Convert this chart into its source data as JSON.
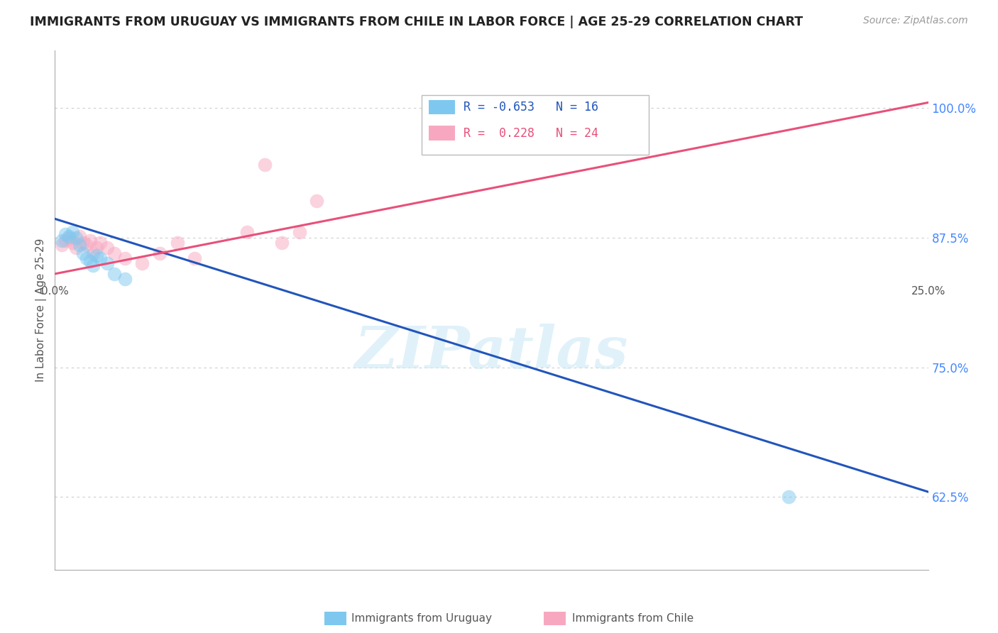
{
  "title": "IMMIGRANTS FROM URUGUAY VS IMMIGRANTS FROM CHILE IN LABOR FORCE | AGE 25-29 CORRELATION CHART",
  "source": "Source: ZipAtlas.com",
  "ylabel": "In Labor Force | Age 25-29",
  "ytick_labels": [
    "62.5%",
    "75.0%",
    "87.5%",
    "100.0%"
  ],
  "ytick_values": [
    0.625,
    0.75,
    0.875,
    1.0
  ],
  "xlim": [
    0.0,
    0.25
  ],
  "ylim": [
    0.555,
    1.055
  ],
  "legend_r_uruguay": "-0.653",
  "legend_n_uruguay": "16",
  "legend_r_chile": "0.228",
  "legend_n_chile": "24",
  "watermark": "ZIPatlas",
  "uruguay_color": "#7ec8f0",
  "chile_color": "#f7a8c0",
  "uruguay_line_color": "#2255bb",
  "chile_line_color": "#e8507a",
  "uruguay_x": [
    0.002,
    0.003,
    0.004,
    0.005,
    0.006,
    0.007,
    0.008,
    0.009,
    0.01,
    0.011,
    0.012,
    0.013,
    0.015,
    0.017,
    0.02,
    0.21
  ],
  "uruguay_y": [
    0.872,
    0.878,
    0.876,
    0.88,
    0.875,
    0.868,
    0.86,
    0.855,
    0.852,
    0.848,
    0.858,
    0.855,
    0.85,
    0.84,
    0.835,
    0.625
  ],
  "chile_x": [
    0.002,
    0.003,
    0.004,
    0.005,
    0.006,
    0.007,
    0.008,
    0.009,
    0.01,
    0.011,
    0.012,
    0.013,
    0.015,
    0.017,
    0.02,
    0.025,
    0.03,
    0.035,
    0.04,
    0.055,
    0.06,
    0.065,
    0.07,
    0.075
  ],
  "chile_y": [
    0.868,
    0.872,
    0.875,
    0.87,
    0.865,
    0.876,
    0.87,
    0.868,
    0.872,
    0.86,
    0.865,
    0.87,
    0.865,
    0.86,
    0.855,
    0.85,
    0.86,
    0.87,
    0.855,
    0.88,
    0.945,
    0.87,
    0.88,
    0.91
  ],
  "uruguay_trend_x": [
    0.0,
    0.25
  ],
  "uruguay_trend_y": [
    0.893,
    0.63
  ],
  "chile_trend_x": [
    0.0,
    0.25
  ],
  "chile_trend_y": [
    0.84,
    1.005
  ],
  "grid_color": "#cccccc",
  "background_color": "#ffffff",
  "dot_size": 200,
  "dot_alpha": 0.5
}
